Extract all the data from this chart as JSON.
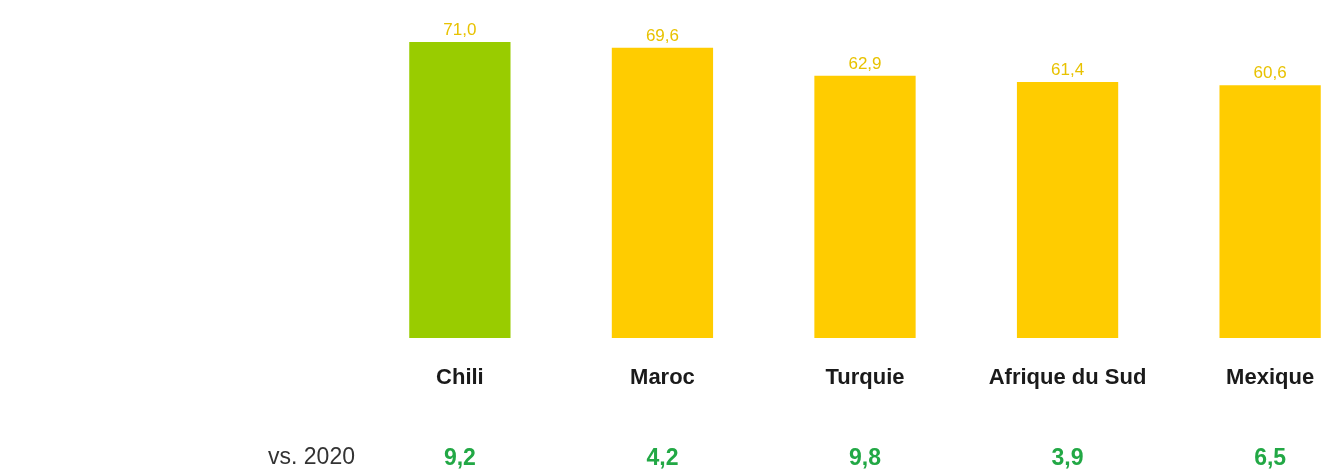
{
  "chart_data": {
    "type": "bar",
    "categories": [
      "Chili",
      "Maroc",
      "Turquie",
      "Afrique du Sud",
      "Mexique"
    ],
    "values": [
      71.0,
      69.6,
      62.9,
      61.4,
      60.6
    ],
    "colors": [
      "#99cc00",
      "#ffcc00",
      "#ffcc00",
      "#ffcc00",
      "#ffcc00"
    ],
    "value_labels": [
      "71,0",
      "69,6",
      "62,9",
      "61,4",
      "60,6"
    ],
    "annotations": [
      "vs. 2020",
      "9,2",
      "4,2",
      "9,8",
      "3,9",
      "6,5"
    ],
    "grid": false
  }
}
